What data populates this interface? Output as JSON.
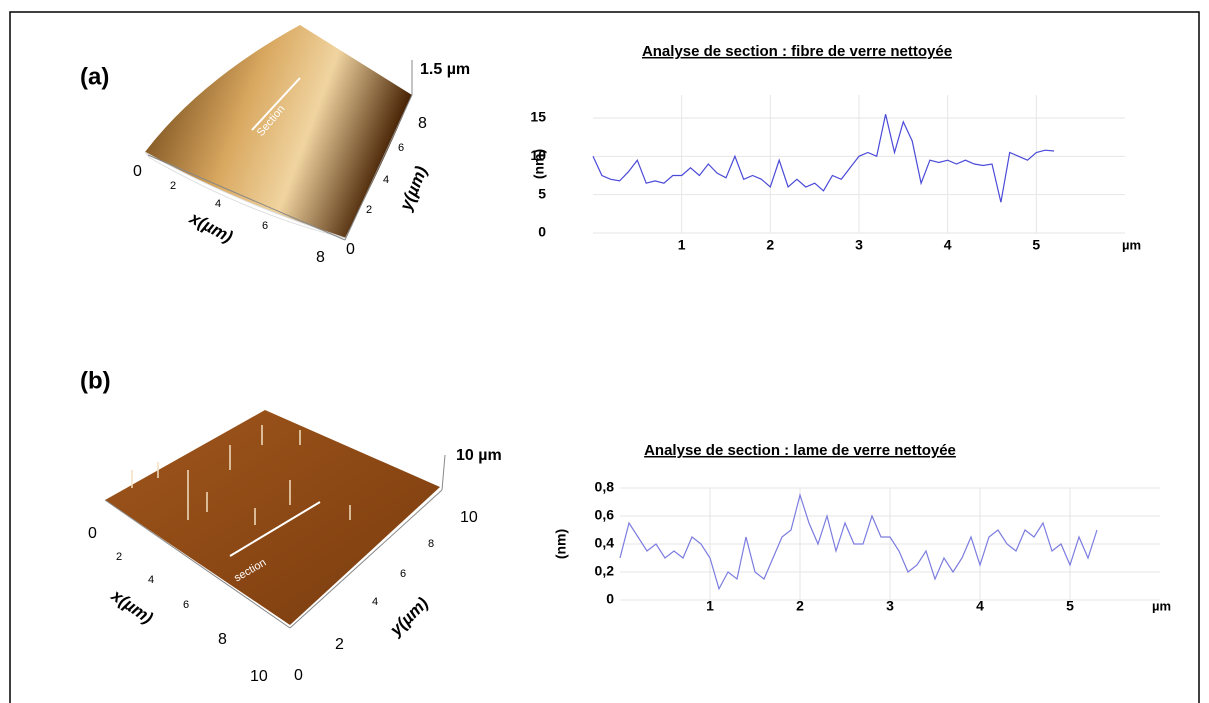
{
  "figures": [
    {
      "label": "(a)",
      "zscale": "1.5 µm",
      "section": "Section",
      "x_label": "x(µm)",
      "y_label": "y(µm)",
      "x_ticks": [
        "0",
        "2",
        "4",
        "6",
        "8"
      ],
      "y_ticks": [
        "0",
        "2",
        "4",
        "6",
        "8"
      ]
    },
    {
      "label": "(b)",
      "zscale": "10 µm",
      "section": "section",
      "x_label": "x(µm)",
      "y_label": "y(µm)",
      "x_ticks": [
        "0",
        "2",
        "4",
        "6",
        "8",
        "10"
      ],
      "y_ticks": [
        "0",
        "2",
        "4",
        "6",
        "8",
        "10"
      ]
    }
  ],
  "chart_data": [
    {
      "type": "line",
      "title": "Analyse de section : fibre de verre nettoyée",
      "ylabel": "(nm)",
      "xlabel": "µm",
      "color": "#4a4ad8",
      "grid": true,
      "xlim": [
        0,
        6
      ],
      "ylim": [
        0,
        18
      ],
      "xticks": [
        1,
        2,
        3,
        4,
        5
      ],
      "yticks": [
        0,
        5,
        10,
        15
      ],
      "x": [
        0,
        0.1,
        0.2,
        0.3,
        0.4,
        0.5,
        0.6,
        0.7,
        0.8,
        0.9,
        1,
        1.1,
        1.2,
        1.3,
        1.4,
        1.5,
        1.6,
        1.7,
        1.8,
        1.9,
        2,
        2.1,
        2.2,
        2.3,
        2.4,
        2.5,
        2.6,
        2.7,
        2.8,
        2.9,
        3,
        3.1,
        3.2,
        3.3,
        3.4,
        3.5,
        3.6,
        3.7,
        3.8,
        3.9,
        4,
        4.1,
        4.2,
        4.3,
        4.4,
        4.5,
        4.6,
        4.7,
        4.8,
        4.9,
        5,
        5.1,
        5.2
      ],
      "values": [
        10,
        7.5,
        7,
        6.8,
        8,
        9.5,
        6.5,
        6.8,
        6.5,
        7.5,
        7.5,
        8.5,
        7.5,
        9,
        7.8,
        7.2,
        10,
        7,
        7.5,
        7,
        6,
        9.5,
        6,
        7,
        6,
        6.5,
        5.5,
        7.5,
        7,
        8.5,
        10,
        10.5,
        10,
        15.5,
        10.5,
        14.5,
        12,
        6.5,
        9.5,
        9.2,
        9.5,
        9,
        9.5,
        9,
        8.8,
        9,
        4,
        10.5,
        10,
        9.5,
        10.5,
        10.8,
        10.7
      ]
    },
    {
      "type": "line",
      "title": "Analyse de section : lame de verre nettoyée",
      "ylabel": "(nm)",
      "xlabel": "µm",
      "color": "#7c7ce0",
      "grid": true,
      "xlim": [
        0,
        6
      ],
      "ylim": [
        0,
        0.8
      ],
      "xticks": [
        1,
        2,
        3,
        4,
        5
      ],
      "yticks": [
        0,
        {
          "value": 0.2,
          "label": "0,2"
        },
        {
          "value": 0.4,
          "label": "0,4"
        },
        {
          "value": 0.6,
          "label": "0,6"
        },
        {
          "value": 0.8,
          "label": "0,8"
        }
      ],
      "x": [
        0,
        0.1,
        0.2,
        0.3,
        0.4,
        0.5,
        0.6,
        0.7,
        0.8,
        0.9,
        1,
        1.1,
        1.2,
        1.3,
        1.4,
        1.5,
        1.6,
        1.7,
        1.8,
        1.9,
        2,
        2.1,
        2.2,
        2.3,
        2.4,
        2.5,
        2.6,
        2.7,
        2.8,
        2.9,
        3,
        3.1,
        3.2,
        3.3,
        3.4,
        3.5,
        3.6,
        3.7,
        3.8,
        3.9,
        4,
        4.1,
        4.2,
        4.3,
        4.4,
        4.5,
        4.6,
        4.7,
        4.8,
        4.9,
        5,
        5.1,
        5.2,
        5.3
      ],
      "values": [
        0.3,
        0.55,
        0.45,
        0.35,
        0.4,
        0.3,
        0.35,
        0.3,
        0.45,
        0.4,
        0.3,
        0.08,
        0.2,
        0.15,
        0.45,
        0.2,
        0.15,
        0.3,
        0.45,
        0.5,
        0.75,
        0.55,
        0.4,
        0.6,
        0.35,
        0.55,
        0.4,
        0.4,
        0.6,
        0.45,
        0.45,
        0.35,
        0.2,
        0.25,
        0.35,
        0.15,
        0.3,
        0.2,
        0.3,
        0.45,
        0.25,
        0.45,
        0.5,
        0.4,
        0.35,
        0.5,
        0.45,
        0.55,
        0.35,
        0.4,
        0.25,
        0.45,
        0.3,
        0.5
      ]
    }
  ]
}
